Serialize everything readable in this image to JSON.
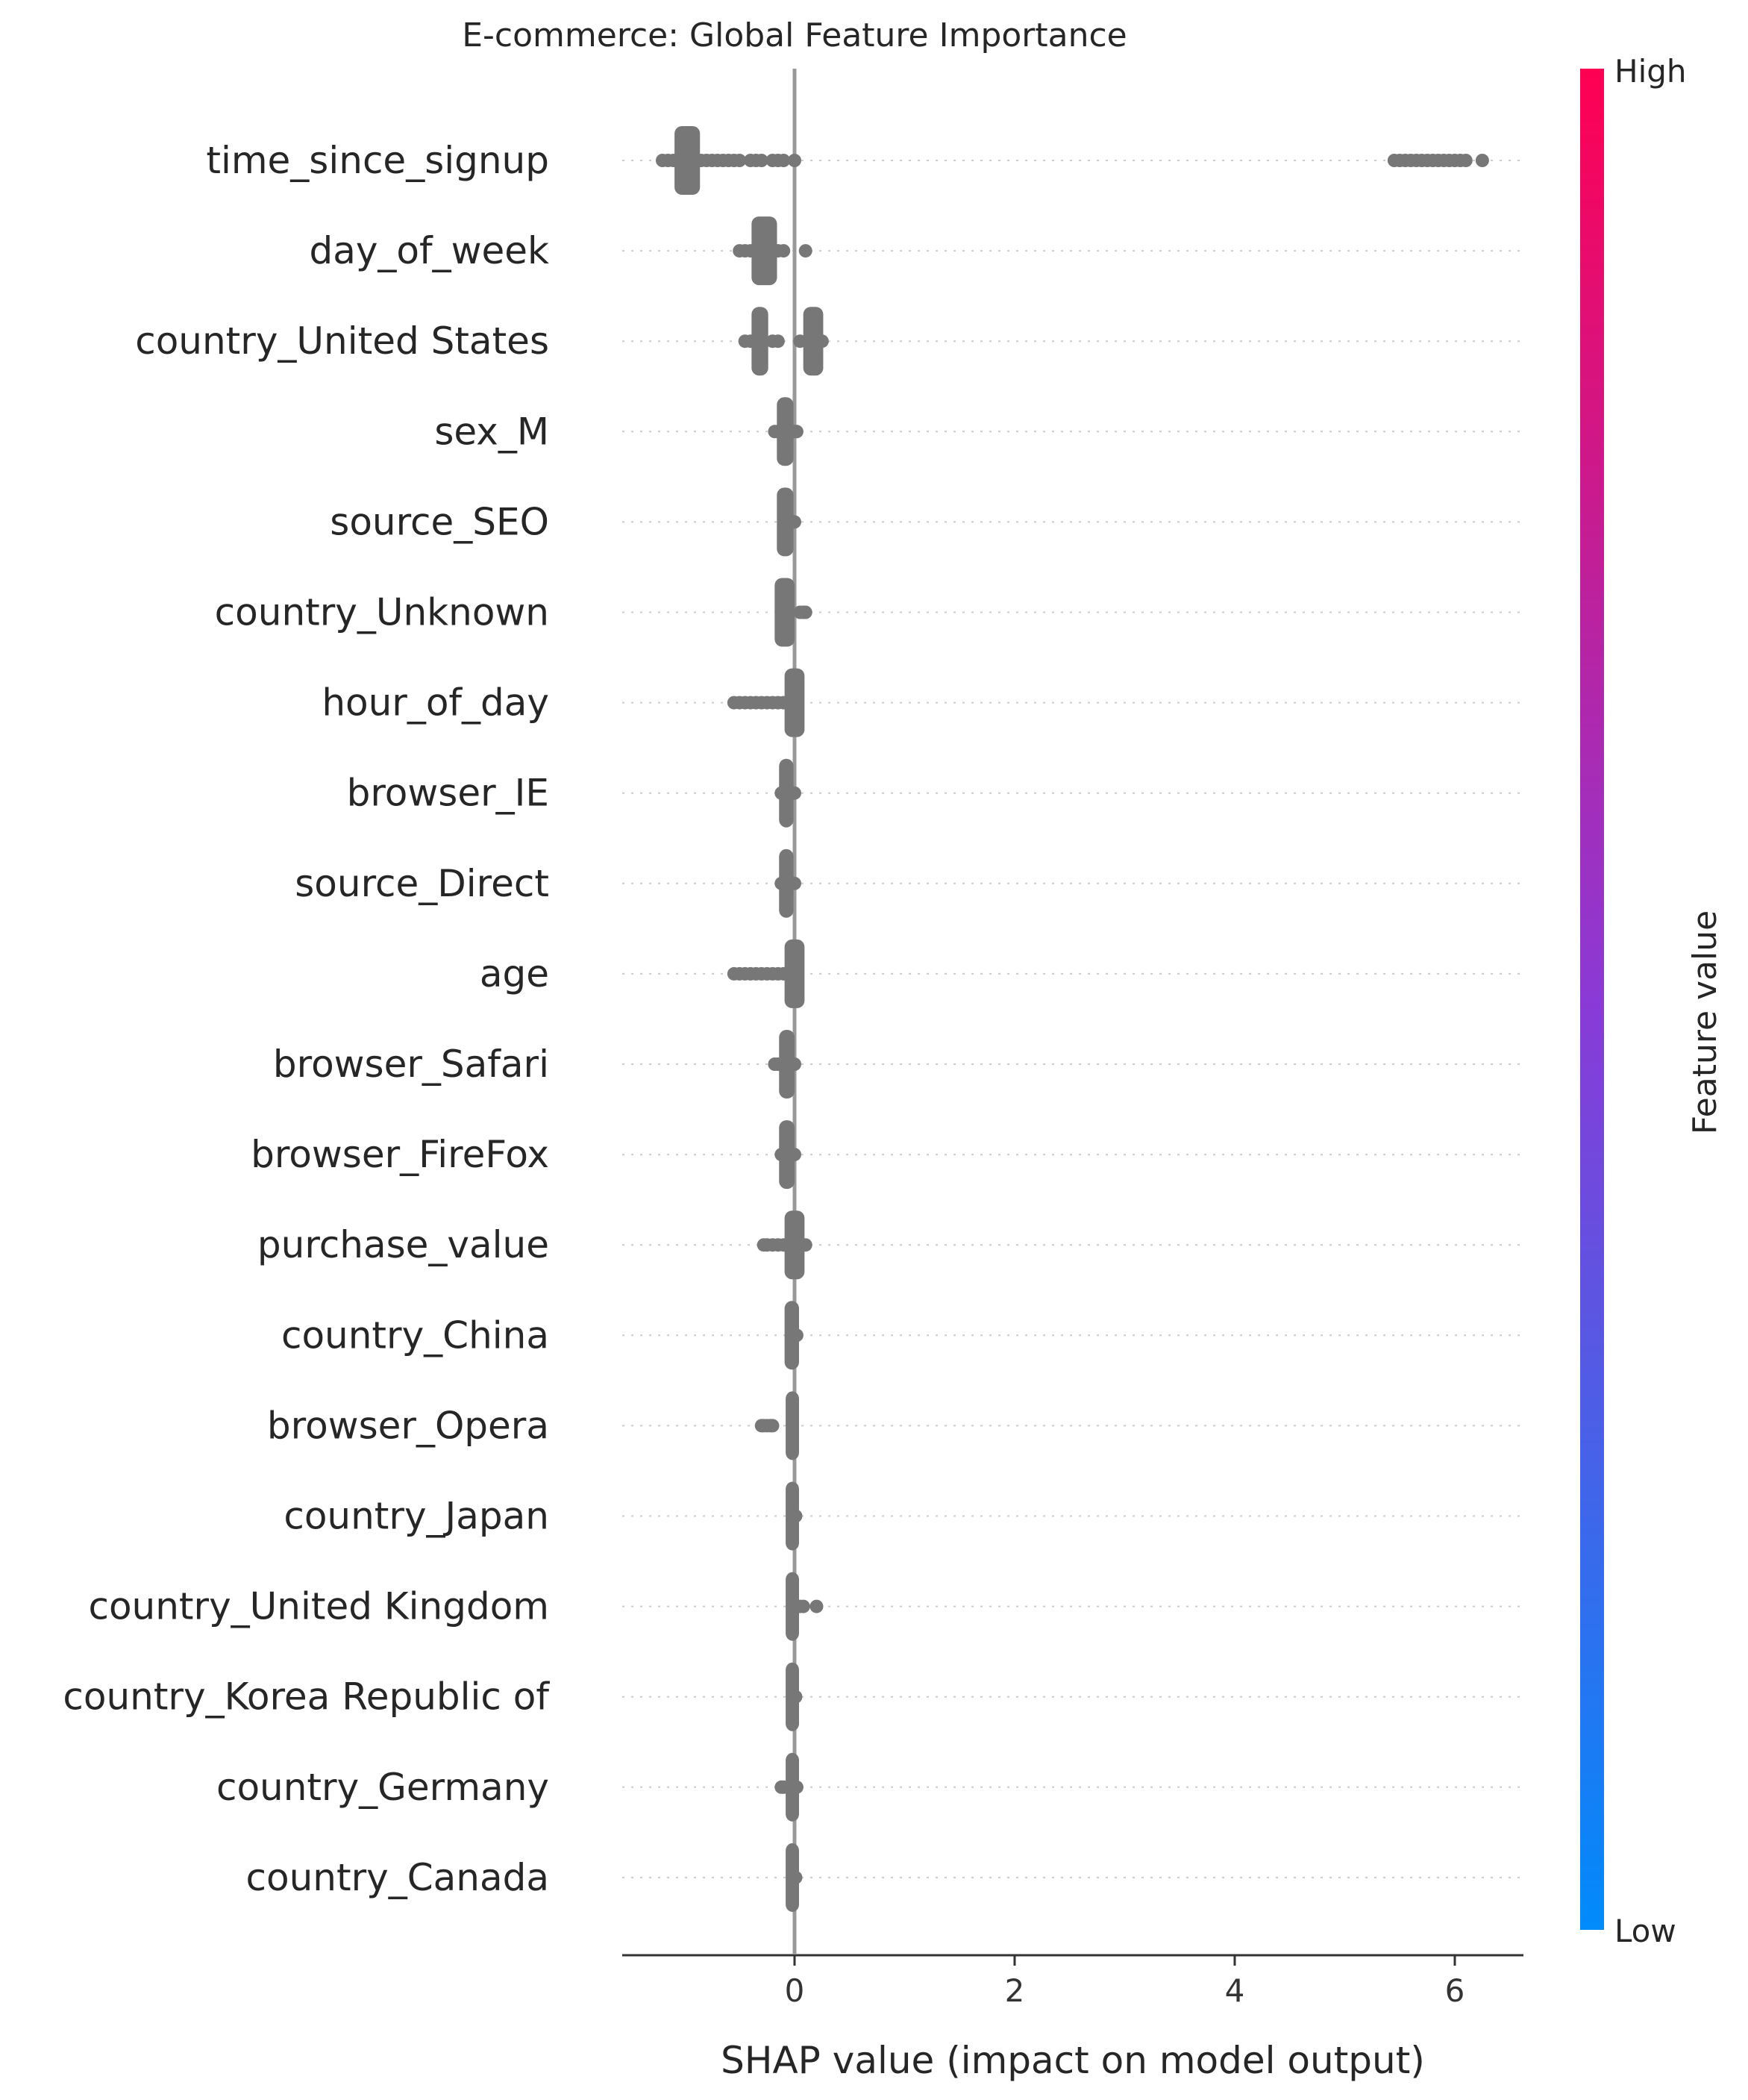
{
  "chart_data": {
    "type": "scatter",
    "subtype": "shap-beeswarm",
    "title": "E-commerce: Global Feature Importance",
    "xlabel": "SHAP value (impact on model output)",
    "xlim": [
      -1.55,
      6.65
    ],
    "xticks": [
      0,
      2,
      4,
      6
    ],
    "zero_line": 0,
    "grid": false,
    "point_color": "#777777",
    "colorbar": {
      "label": "Feature value",
      "high_label": "High",
      "low_label": "Low",
      "high_color": "#ff0052",
      "mid_color": "#8a3ad6",
      "low_color": "#008bfb"
    },
    "features": [
      {
        "name": "time_since_signup",
        "dense": [
          -1.05,
          -0.9
        ],
        "sparse": [
          -1.2,
          -1.15,
          -1.1,
          -0.85,
          -0.8,
          -0.75,
          -0.7,
          -0.65,
          -0.6,
          -0.55,
          -0.5,
          -0.4,
          -0.35,
          -0.3,
          -0.2,
          -0.15,
          -0.1,
          0.0,
          5.45,
          5.5,
          5.55,
          5.6,
          5.65,
          5.7,
          5.75,
          5.8,
          5.85,
          5.9,
          5.95,
          6.0,
          6.05,
          6.1,
          6.25
        ]
      },
      {
        "name": "day_of_week",
        "dense": [
          -0.35,
          -0.2
        ],
        "sparse": [
          -0.5,
          -0.45,
          -0.4,
          -0.15,
          -0.1,
          0.1
        ]
      },
      {
        "name": "country_United States",
        "dense": [
          -0.35,
          -0.28,
          0.12,
          0.22
        ],
        "sparse": [
          -0.45,
          -0.4,
          -0.2,
          -0.15,
          0.05,
          0.25
        ]
      },
      {
        "name": "sex_M",
        "dense": [
          -0.12,
          -0.05
        ],
        "sparse": [
          -0.18,
          -0.15,
          0.0,
          0.02
        ]
      },
      {
        "name": "source_SEO",
        "dense": [
          -0.12,
          -0.05
        ],
        "sparse": [
          -0.02,
          0.0
        ]
      },
      {
        "name": "country_Unknown",
        "dense": [
          -0.14,
          -0.04
        ],
        "sparse": [
          0.05,
          0.08,
          0.1
        ]
      },
      {
        "name": "hour_of_day",
        "dense": [
          -0.05,
          0.05
        ],
        "sparse": [
          -0.55,
          -0.5,
          -0.45,
          -0.4,
          -0.35,
          -0.3,
          -0.25,
          -0.2,
          -0.15,
          -0.1
        ]
      },
      {
        "name": "browser_IE",
        "dense": [
          -0.1,
          -0.05
        ],
        "sparse": [
          -0.12,
          0.0
        ]
      },
      {
        "name": "source_Direct",
        "dense": [
          -0.1,
          -0.05
        ],
        "sparse": [
          -0.12,
          0.0
        ]
      },
      {
        "name": "age",
        "dense": [
          -0.05,
          0.05
        ],
        "sparse": [
          -0.55,
          -0.5,
          -0.45,
          -0.4,
          -0.35,
          -0.3,
          -0.25,
          -0.2,
          -0.15,
          -0.1
        ]
      },
      {
        "name": "browser_Safari",
        "dense": [
          -0.1,
          -0.04
        ],
        "sparse": [
          -0.18,
          -0.15,
          0.0
        ]
      },
      {
        "name": "browser_FireFox",
        "dense": [
          -0.1,
          -0.04
        ],
        "sparse": [
          -0.12,
          0.0
        ]
      },
      {
        "name": "purchase_value",
        "dense": [
          -0.05,
          0.05
        ],
        "sparse": [
          -0.28,
          -0.25,
          -0.2,
          -0.15,
          -0.1,
          0.1
        ]
      },
      {
        "name": "country_China",
        "dense": [
          -0.05,
          0.0
        ],
        "sparse": [
          0.02
        ]
      },
      {
        "name": "browser_Opera",
        "dense": [
          -0.04,
          0.0
        ],
        "sparse": [
          -0.3,
          -0.28,
          -0.25,
          -0.22,
          -0.2
        ]
      },
      {
        "name": "country_Japan",
        "dense": [
          -0.04,
          0.0
        ],
        "sparse": [
          0.01
        ]
      },
      {
        "name": "country_United Kingdom",
        "dense": [
          -0.04,
          0.0
        ],
        "sparse": [
          0.05,
          0.08,
          0.2
        ]
      },
      {
        "name": "country_Korea Republic of",
        "dense": [
          -0.04,
          0.0
        ],
        "sparse": [
          0.01
        ]
      },
      {
        "name": "country_Germany",
        "dense": [
          -0.04,
          0.0
        ],
        "sparse": [
          -0.12,
          -0.1,
          0.02
        ]
      },
      {
        "name": "country_Canada",
        "dense": [
          -0.04,
          0.0
        ],
        "sparse": [
          0.01
        ]
      }
    ]
  }
}
